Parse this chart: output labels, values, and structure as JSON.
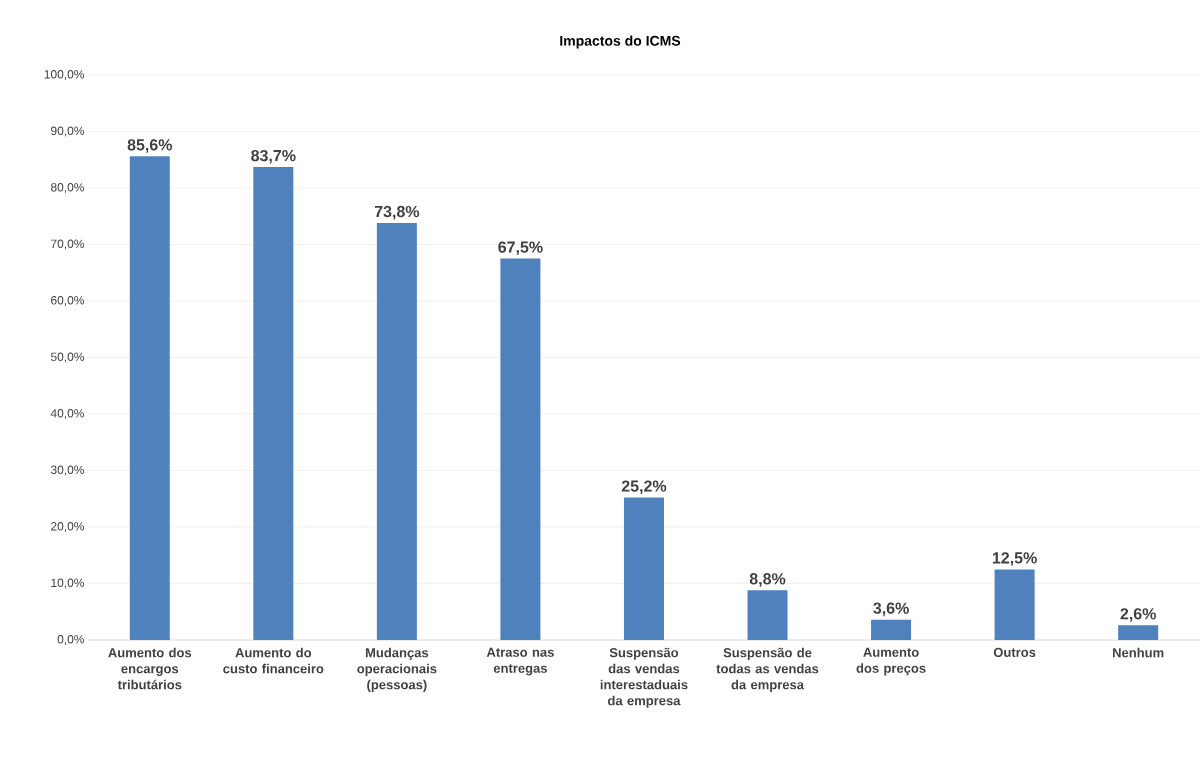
{
  "chart_data": {
    "type": "bar",
    "title": "Impactos do ICMS",
    "categories": [
      "Aumento dos encargos tributários",
      "Aumento do custo financeiro",
      "Mudanças operacionais (pessoas)",
      "Atraso nas entregas",
      "Suspensão das vendas interestaduais da empresa",
      "Suspensão de todas as vendas da empresa",
      "Aumento dos preços",
      "Outros",
      "Nenhum"
    ],
    "values": [
      85.6,
      83.7,
      73.8,
      67.5,
      25.2,
      8.8,
      3.6,
      12.5,
      2.6
    ],
    "value_labels": [
      "85,6%",
      "83,7%",
      "73,8%",
      "67,5%",
      "25,2%",
      "8,8%",
      "3,6%",
      "12,5%",
      "2,6%"
    ],
    "color": "#4f81bd",
    "ylim": [
      0,
      100
    ],
    "yticks": [
      {
        "value": 0,
        "label": "0,0%"
      },
      {
        "value": 10,
        "label": "10,0%"
      },
      {
        "value": 20,
        "label": "20,0%"
      },
      {
        "value": 30,
        "label": "30,0%"
      },
      {
        "value": 40,
        "label": "40,0%"
      },
      {
        "value": 50,
        "label": "50,0%"
      },
      {
        "value": 60,
        "label": "60,0%"
      },
      {
        "value": 70,
        "label": "70,0%"
      },
      {
        "value": 80,
        "label": "80,0%"
      },
      {
        "value": 90,
        "label": "90,0%"
      },
      {
        "value": 100,
        "label": "100,0%"
      }
    ],
    "grid": "y"
  }
}
